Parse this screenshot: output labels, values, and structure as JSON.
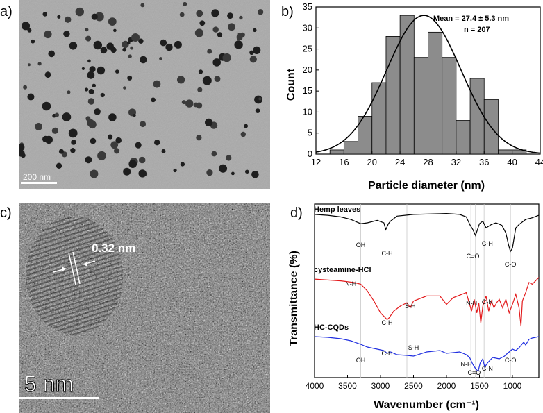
{
  "panels": {
    "a": {
      "label": "a)",
      "scale_bar": "200 nm"
    },
    "b": {
      "label": "b)",
      "chart_data": {
        "type": "bar",
        "annotation_mean": "Mean = 27.4 ± 5.3   nm",
        "annotation_n": "n = 207",
        "xlabel": "Particle diameter (nm)",
        "ylabel": "Count",
        "xlim": [
          12,
          44
        ],
        "ylim": [
          0,
          35
        ],
        "xticks": [
          12,
          16,
          20,
          24,
          28,
          32,
          36,
          40,
          44
        ],
        "yticks": [
          0,
          5,
          10,
          15,
          20,
          25,
          30,
          35
        ],
        "bin_width": 2,
        "bins_left_edge": [
          14,
          16,
          18,
          20,
          22,
          24,
          26,
          28,
          30,
          32,
          34,
          36,
          38,
          40
        ],
        "counts": [
          1,
          3,
          9,
          17,
          28,
          33,
          23,
          29,
          23,
          8,
          18,
          13,
          1,
          1
        ],
        "fit": {
          "type": "gaussian",
          "mean": 27.4,
          "sd": 5.3,
          "peak": 33
        },
        "bar_color": "#8c8c8c",
        "grid": false
      }
    },
    "c": {
      "label": "c)",
      "lattice_label": "0.32 nm",
      "scale_bar": "5 nm"
    },
    "d": {
      "label": "d)",
      "chart_data": {
        "type": "line",
        "xlabel": "Wavenumber (cm⁻¹)",
        "ylabel": "Transmittance (%)",
        "xlim": [
          4000,
          600
        ],
        "xticks": [
          4000,
          3500,
          3000,
          2500,
          2000,
          1500,
          1000
        ],
        "series": [
          {
            "name": "Hemp leaves",
            "color": "#000000",
            "x": [
              4000,
              3800,
              3600,
              3450,
              3300,
              3200,
              3050,
              2950,
              2920,
              2880,
              2850,
              2750,
              2500,
              2000,
              1800,
              1700,
              1640,
              1600,
              1560,
              1500,
              1450,
              1400,
              1320,
              1250,
              1160,
              1100,
              1060,
              1030,
              1000,
              950,
              900,
              800,
              700,
              600
            ],
            "y": [
              96,
              95,
              93,
              90,
              85,
              86,
              89,
              86,
              78,
              85,
              88,
              94,
              96,
              97,
              96,
              93,
              83,
              78,
              71,
              85,
              88,
              80,
              84,
              86,
              83,
              74,
              60,
              52,
              56,
              80,
              84,
              90,
              92,
              95
            ]
          },
          {
            "name": "cysteamine-HCl",
            "color": "#e31a1c",
            "x": [
              4000,
              3800,
              3600,
              3400,
              3300,
              3200,
              3100,
              3000,
              2950,
              2900,
              2870,
              2800,
              2700,
              2600,
              2550,
              2500,
              2300,
              2100,
              2000,
              1900,
              1700,
              1620,
              1580,
              1540,
              1510,
              1480,
              1450,
              1400,
              1360,
              1320,
              1280,
              1240,
              1200,
              1150,
              1100,
              1050,
              1000,
              950,
              900,
              870,
              850,
              800,
              750,
              700,
              650,
              600
            ],
            "y": [
              90,
              89,
              88,
              86,
              84,
              76,
              64,
              50,
              46,
              42,
              44,
              52,
              58,
              62,
              56,
              64,
              70,
              70,
              60,
              68,
              74,
              52,
              66,
              50,
              62,
              38,
              58,
              70,
              52,
              64,
              56,
              62,
              66,
              56,
              66,
              50,
              60,
              72,
              56,
              34,
              64,
              74,
              86,
              84,
              88,
              92
            ]
          },
          {
            "name": "HC-CQDs",
            "color": "#1f2ee0",
            "x": [
              4000,
              3800,
              3600,
              3450,
              3300,
              3200,
              3100,
              3000,
              2950,
              2900,
              2850,
              2750,
              2600,
              2500,
              2300,
              2100,
              2000,
              1800,
              1700,
              1650,
              1600,
              1560,
              1520,
              1490,
              1450,
              1420,
              1380,
              1300,
              1200,
              1120,
              1100,
              1050,
              1000,
              950,
              900,
              830,
              800,
              750,
              700,
              600
            ],
            "y": [
              90,
              89,
              87,
              84,
              79,
              75,
              73,
              71,
              70,
              66,
              68,
              64,
              63,
              62,
              68,
              70,
              66,
              68,
              64,
              60,
              50,
              44,
              40,
              52,
              58,
              46,
              52,
              60,
              58,
              62,
              64,
              68,
              72,
              70,
              74,
              82,
              78,
              86,
              88,
              90
            ]
          }
        ],
        "annotations": {
          "hemp": [
            "OH",
            "C-H",
            "C=O",
            "C-H",
            "C-O"
          ],
          "cys": [
            "N-H",
            "C-H",
            "S-H",
            "N-H",
            "C-N"
          ],
          "cqd": [
            "OH",
            "C-H",
            "S-H",
            "N-H",
            "C=O",
            "C-N",
            "C-O"
          ]
        }
      }
    }
  }
}
